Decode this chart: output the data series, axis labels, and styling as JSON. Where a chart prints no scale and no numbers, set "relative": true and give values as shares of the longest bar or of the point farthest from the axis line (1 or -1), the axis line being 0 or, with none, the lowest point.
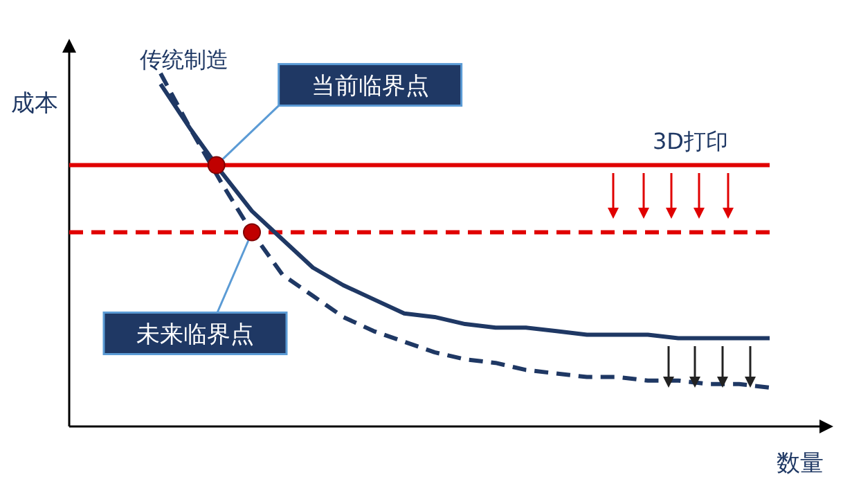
{
  "chart_data": {
    "type": "line",
    "relative": true,
    "xlabel": "数量",
    "ylabel": "成本",
    "legend": false,
    "categories": [
      null,
      null,
      null,
      null,
      null,
      null,
      null,
      null,
      null,
      null,
      null,
      null,
      null,
      null,
      null,
      null,
      null,
      null,
      null,
      null,
      null
    ],
    "series": [
      {
        "name": "传统制造",
        "color": "#1f3864",
        "line_style": "solid",
        "marker": "none",
        "values": [
          0.97,
          0.84,
          0.72,
          0.61,
          0.53,
          0.45,
          0.4,
          0.36,
          0.32,
          0.31,
          0.29,
          0.28,
          0.28,
          0.27,
          0.26,
          0.26,
          0.26,
          0.25,
          0.25,
          0.25,
          0.25
        ]
      },
      {
        "color": "#1f3864",
        "line_style": "dashed",
        "marker": "none",
        "values": [
          1.0,
          0.84,
          0.69,
          0.55,
          0.43,
          0.37,
          0.31,
          0.27,
          0.24,
          0.21,
          0.19,
          0.18,
          0.16,
          0.15,
          0.14,
          0.14,
          0.13,
          0.13,
          0.12,
          0.12,
          0.11
        ]
      }
    ],
    "ref_lines": [
      {
        "axis": "y",
        "value": 0.74,
        "label": "3D打印",
        "color": "#e00000",
        "line_style": "solid"
      },
      {
        "axis": "y",
        "value": 0.55,
        "color": "#e00000",
        "line_style": "dashed"
      }
    ],
    "annotations": [
      "当前临界点",
      "未来临界点"
    ]
  }
}
